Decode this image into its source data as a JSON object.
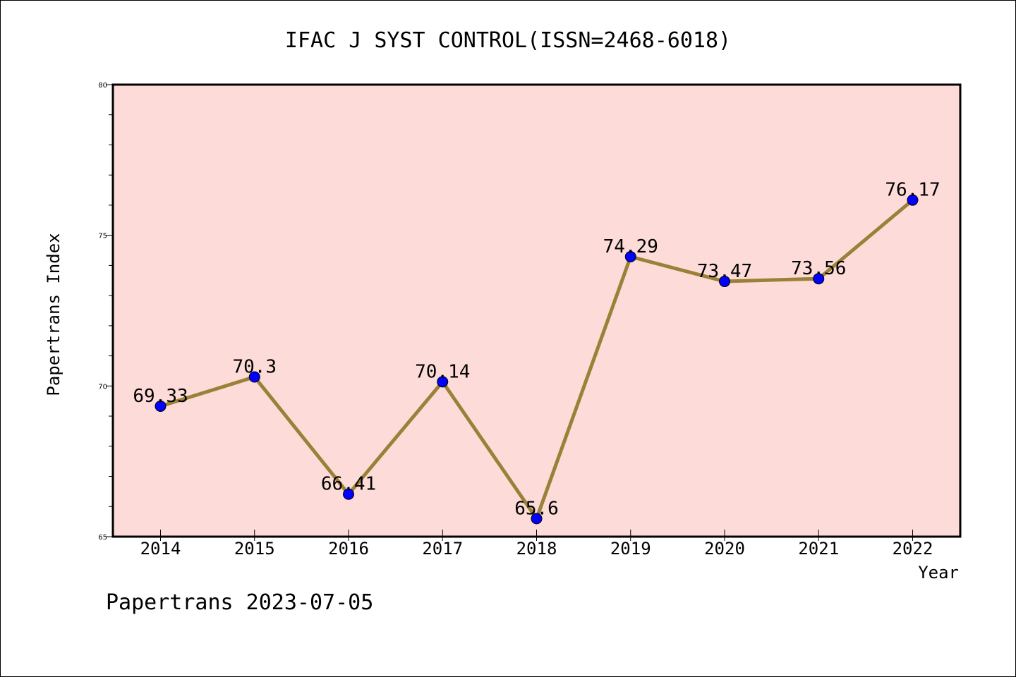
{
  "chart_data": {
    "type": "line",
    "title": "IFAC J SYST CONTROL(ISSN=2468-6018)",
    "xlabel": "Year",
    "ylabel": "Papertrans Index",
    "categories": [
      "2014",
      "2015",
      "2016",
      "2017",
      "2018",
      "2019",
      "2020",
      "2021",
      "2022"
    ],
    "series": [
      {
        "values": [
          69.33,
          70.3,
          66.41,
          70.14,
          65.6,
          74.29,
          73.47,
          73.56,
          76.17
        ],
        "labels": [
          "69.33",
          "70.3",
          "66.41",
          "70.14",
          "65.6",
          "74.29",
          "73.47",
          "73.56",
          "76.17"
        ]
      }
    ],
    "ylim": [
      65,
      80
    ],
    "yticks": [
      "65",
      "70",
      "75",
      "80"
    ],
    "colors": {
      "plot_background": "#fddbd8",
      "line": "#9a8138",
      "marker": "#0000ff"
    },
    "grid": false
  },
  "footer": "Papertrans 2023-07-05"
}
